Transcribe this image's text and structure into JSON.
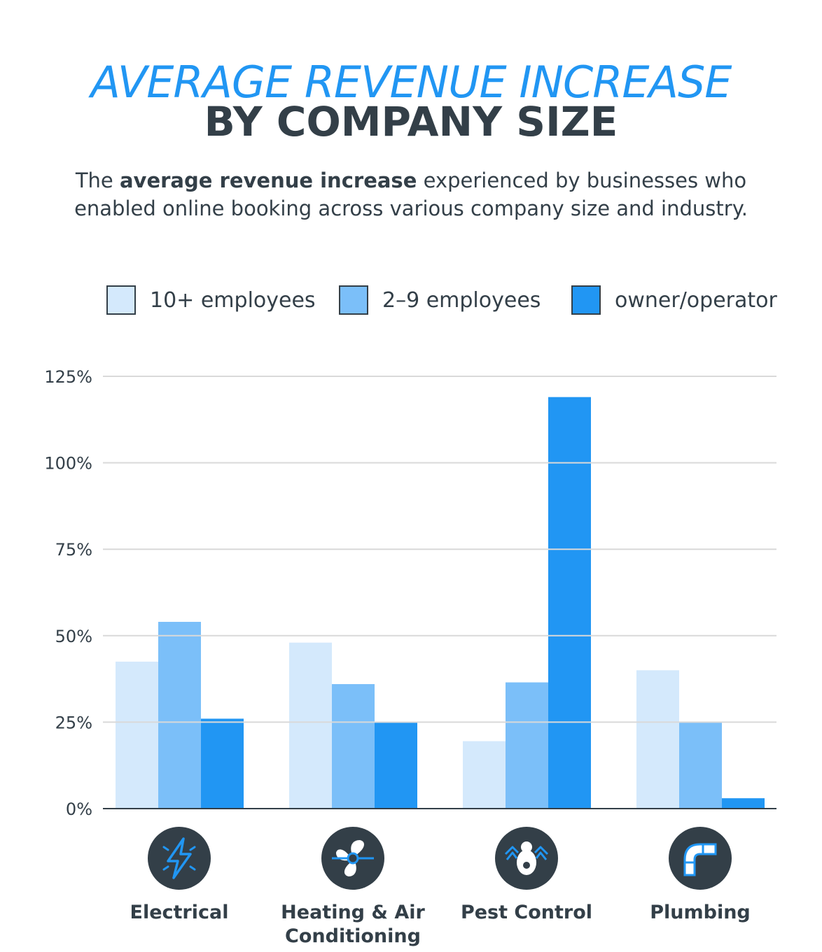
{
  "header": {
    "title_line1": "AVERAGE REVENUE INCREASE",
    "title_line2": "BY COMPANY SIZE",
    "subtitle_pre": "The ",
    "subtitle_bold": "average revenue increase",
    "subtitle_post": " experienced by businesses who enabled online booking across various company size and industry."
  },
  "colors": {
    "accent": "#2196f3",
    "dark": "#333f48",
    "grid": "#d9d9d9"
  },
  "chart_data": {
    "type": "bar",
    "categories": [
      "Electrical",
      "Heating & Air Conditioning",
      "Pest Control",
      "Plumbing"
    ],
    "category_icons": [
      "lightning-icon",
      "fan-icon",
      "bug-icon",
      "pipe-icon"
    ],
    "series": [
      {
        "name": "10+ employees",
        "color": "#d4e9fc",
        "values": [
          42.5,
          48,
          19.5,
          40
        ]
      },
      {
        "name": "2–9 employees",
        "color": "#7bbff9",
        "values": [
          54,
          36,
          36.5,
          25
        ]
      },
      {
        "name": "owner/operator",
        "color": "#2196f3",
        "values": [
          26,
          25,
          119,
          3
        ]
      }
    ],
    "y_ticks": [
      "0%",
      "25%",
      "50%",
      "75%",
      "100%",
      "125%"
    ],
    "y_tick_values": [
      0,
      25,
      50,
      75,
      100,
      125
    ],
    "ylim": [
      0,
      125
    ],
    "grid": true,
    "legend_position": "top"
  }
}
